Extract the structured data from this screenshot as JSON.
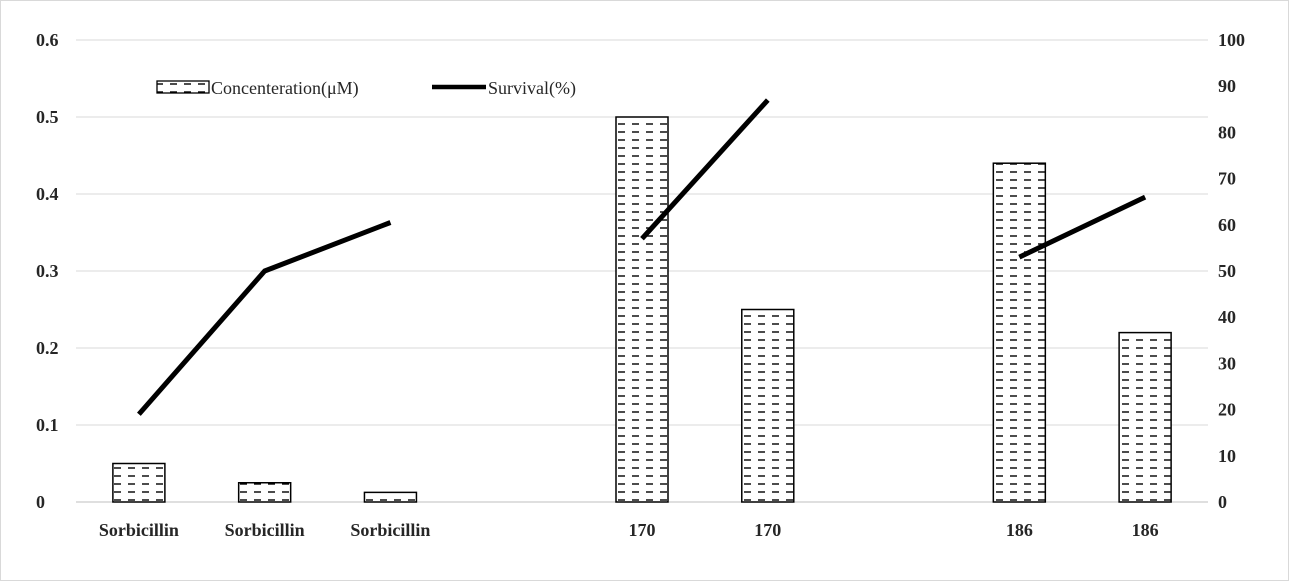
{
  "chart_data": {
    "type": "bar",
    "categories": [
      "Sorbicillin",
      "Sorbicillin",
      "Sorbicillin",
      "",
      "170",
      "170",
      "",
      "186",
      "186"
    ],
    "series": [
      {
        "name": "Concenteration(μM)",
        "type": "bar",
        "axis": "left",
        "values": [
          0.05,
          0.025,
          0.0125,
          null,
          0.5,
          0.25,
          null,
          0.44,
          0.22
        ]
      },
      {
        "name": "Survival(%)",
        "type": "line",
        "axis": "right",
        "values": [
          19,
          50,
          60.5,
          null,
          57,
          87,
          null,
          53,
          66
        ]
      }
    ],
    "y_left": {
      "min": 0,
      "max": 0.6,
      "ticks": [
        "0",
        "0.1",
        "0.2",
        "0.3",
        "0.4",
        "0.5",
        "0.6"
      ]
    },
    "y_right": {
      "min": 0,
      "max": 100,
      "ticks": [
        "0",
        "10",
        "20",
        "30",
        "40",
        "50",
        "60",
        "70",
        "80",
        "90",
        "100"
      ]
    },
    "grid": true,
    "legend": "top-left",
    "colors": {
      "line": "#000000",
      "bar_border": "#000000",
      "grid": "#d9d9d9",
      "text": "#262626"
    }
  }
}
